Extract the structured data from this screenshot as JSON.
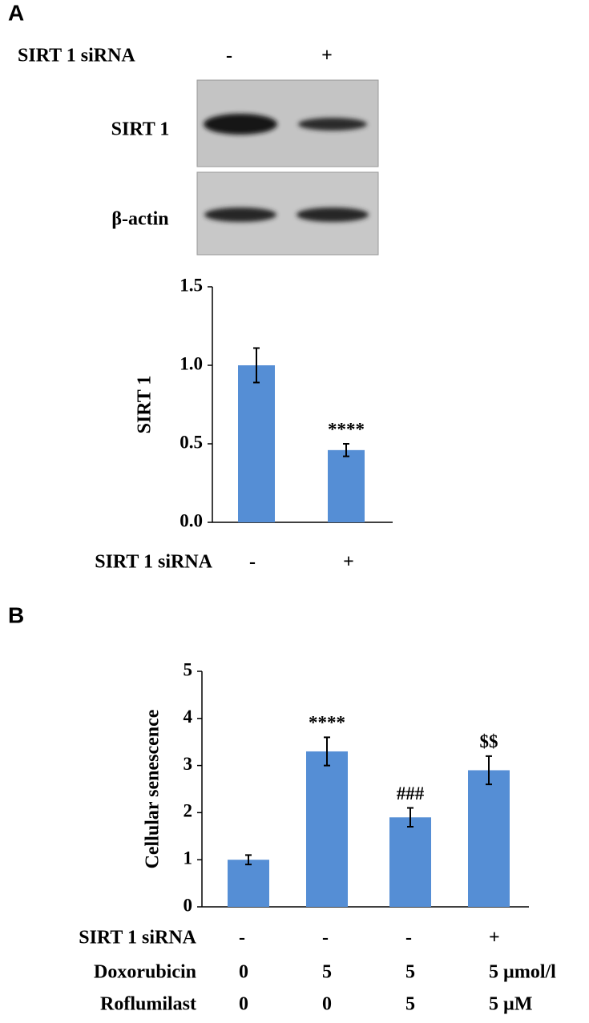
{
  "panel_a": {
    "label": "A",
    "blot": {
      "treatment_label": "SIRT 1 siRNA",
      "lanes": [
        "-",
        "+"
      ],
      "rows": [
        "SIRT 1",
        "β-actin"
      ]
    }
  },
  "panel_b": {
    "label": "B"
  },
  "chart_data": [
    {
      "type": "bar",
      "ylabel": "SIRT 1",
      "category_rows": [
        {
          "label": "SIRT 1 siRNA",
          "values": [
            "-",
            "+"
          ]
        }
      ],
      "values": [
        1.0,
        0.46
      ],
      "errors": [
        0.11,
        0.04
      ],
      "value_annotations": [
        null,
        "****"
      ],
      "color": "#558ed5",
      "ylim": [
        0,
        1.5
      ],
      "yticks": [
        {
          "value": 0,
          "label": "0.0"
        },
        {
          "value": 0.5,
          "label": "0.5"
        },
        {
          "value": 1,
          "label": "1.0"
        },
        {
          "value": 1.5,
          "label": "1.5"
        }
      ]
    },
    {
      "type": "bar",
      "ylabel": "Cellular senescence",
      "category_rows": [
        {
          "label": "SIRT 1 siRNA",
          "values": [
            "-",
            "-",
            "-",
            "+"
          ]
        },
        {
          "label": "Doxorubicin",
          "values": [
            "0",
            "5",
            "5",
            "5 µmol/l"
          ]
        },
        {
          "label": "Roflumilast",
          "values": [
            "0",
            "0",
            "5",
            "5 µM"
          ]
        }
      ],
      "values": [
        1.0,
        3.3,
        1.9,
        2.9
      ],
      "errors": [
        0.1,
        0.3,
        0.2,
        0.3
      ],
      "value_annotations": [
        null,
        "****",
        "###",
        "$$"
      ],
      "color": "#558ed5",
      "ylim": [
        0,
        5
      ],
      "yticks": [
        0,
        1,
        2,
        3,
        4,
        5
      ]
    }
  ]
}
